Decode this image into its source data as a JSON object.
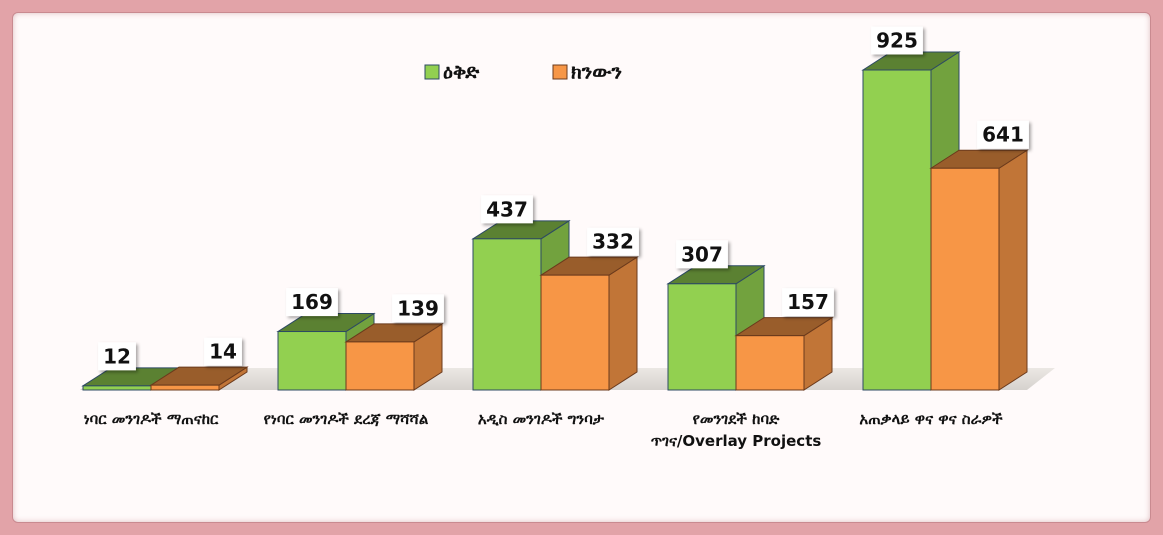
{
  "chart_data": {
    "type": "bar3d",
    "categories": [
      "ነባር መንገዶች ማጠናከር",
      "የነባር መንገዶች ደረጃ ማሻሻል",
      "አዲስ መንገዶች ግንባታ",
      "የመንገደች ከባድ ጥገና/Overlay Projects",
      "አጠቃላይ ዋና ዋና ስራዎች"
    ],
    "series": [
      {
        "name": "ዕቅድ",
        "color": "#92d050",
        "values": [
          12,
          169,
          437,
          307,
          925
        ]
      },
      {
        "name": "ክንውን",
        "color": "#f79646",
        "values": [
          14,
          139,
          332,
          157,
          641
        ]
      }
    ],
    "legend": "top",
    "data_labels": true
  }
}
